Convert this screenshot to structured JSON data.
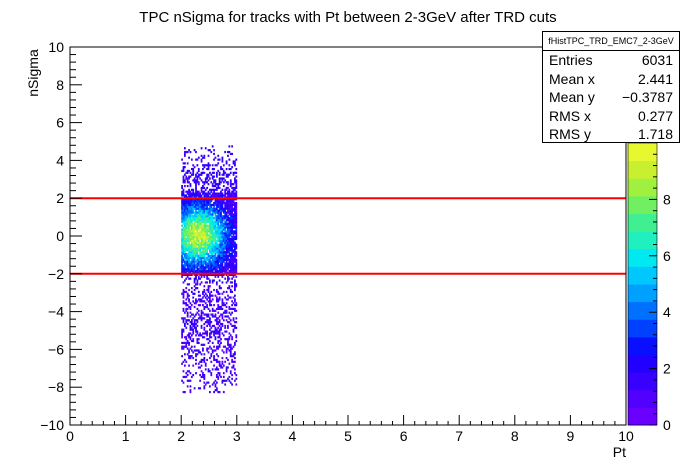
{
  "chart_data": {
    "type": "heatmap",
    "title": "TPC nSigma for tracks with Pt between 2-3GeV after TRD cuts",
    "xlabel": "Pt",
    "ylabel": "nSigma",
    "xlim": [
      0,
      10
    ],
    "ylim": [
      -10,
      10
    ],
    "x_ticks": [
      "0",
      "1",
      "2",
      "3",
      "4",
      "5",
      "6",
      "7",
      "8",
      "9",
      "10"
    ],
    "y_ticks": [
      "−10",
      "−8",
      "−6",
      "−4",
      "−2",
      "0",
      "2",
      "4",
      "6",
      "8",
      "10"
    ],
    "z_range": [
      0,
      10
    ],
    "z_ticks": [
      "0",
      "2",
      "4",
      "6",
      "8"
    ],
    "palette": [
      "#6a00ff",
      "#5200ff",
      "#3a00ff",
      "#2200ff",
      "#0a10ff",
      "#0040ff",
      "#0070ff",
      "#00a0ff",
      "#00c8ff",
      "#00e8f0",
      "#20f0c0",
      "#40f090",
      "#70f060",
      "#a0f040",
      "#c8f030",
      "#e8f830"
    ],
    "cut_lines": [
      {
        "y": 2,
        "color": "#ff0000"
      },
      {
        "y": -2,
        "color": "#ff0000"
      }
    ],
    "bins": {
      "x_range": [
        2.0,
        3.0
      ],
      "y_range": [
        -8.3,
        4.7
      ],
      "dense_core_y": [
        -2.2,
        2.2
      ],
      "peak": {
        "x": 2.3,
        "y": 0.0,
        "z": 8
      }
    }
  },
  "stats_box": {
    "title": "fHistTPC_TRD_EMC7_2-3GeV",
    "rows": [
      {
        "label": "Entries",
        "value": "6031"
      },
      {
        "label": "Mean x",
        "value": "2.441"
      },
      {
        "label": "Mean y",
        "value": "−0.3787"
      },
      {
        "label": "RMS x",
        "value": "0.277"
      },
      {
        "label": "RMS y",
        "value": "1.718"
      }
    ]
  }
}
